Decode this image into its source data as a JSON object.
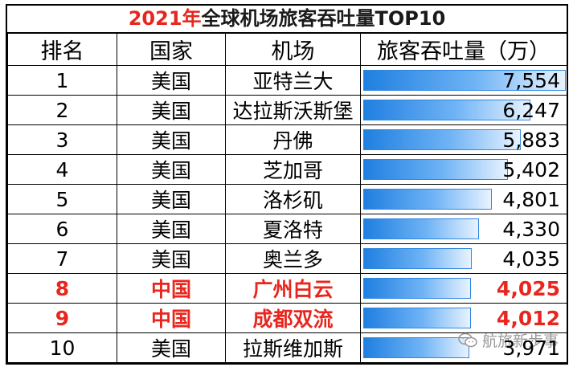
{
  "title": {
    "year": "2021年",
    "rest": "全球机场旅客吞吐量TOP10"
  },
  "headers": {
    "rank": "排名",
    "country": "国家",
    "airport": "机场",
    "volume": "旅客吞吐量（万）"
  },
  "rows": [
    {
      "rank": "1",
      "country": "美国",
      "airport": "亚特兰大",
      "value": "7,554",
      "num": 7554,
      "highlight": false
    },
    {
      "rank": "2",
      "country": "美国",
      "airport": "达拉斯沃斯堡",
      "value": "6,247",
      "num": 6247,
      "highlight": false
    },
    {
      "rank": "3",
      "country": "美国",
      "airport": "丹佛",
      "value": "5,883",
      "num": 5883,
      "highlight": false
    },
    {
      "rank": "4",
      "country": "美国",
      "airport": "芝加哥",
      "value": "5,402",
      "num": 5402,
      "highlight": false
    },
    {
      "rank": "5",
      "country": "美国",
      "airport": "洛杉矶",
      "value": "4,801",
      "num": 4801,
      "highlight": false
    },
    {
      "rank": "6",
      "country": "美国",
      "airport": "夏洛特",
      "value": "4,330",
      "num": 4330,
      "highlight": false
    },
    {
      "rank": "7",
      "country": "美国",
      "airport": "奥兰多",
      "value": "4,035",
      "num": 4035,
      "highlight": false
    },
    {
      "rank": "8",
      "country": "中国",
      "airport": "广州白云",
      "value": "4,025",
      "num": 4025,
      "highlight": true
    },
    {
      "rank": "9",
      "country": "中国",
      "airport": "成都双流",
      "value": "4,012",
      "num": 4012,
      "highlight": true
    },
    {
      "rank": "10",
      "country": "美国",
      "airport": "拉斯维加斯",
      "value": "3,971",
      "num": 3971,
      "highlight": false
    }
  ],
  "bar_max": 7554,
  "colors": {
    "highlight": "#e8261e",
    "bar": "#1f7fe0"
  },
  "watermark": {
    "icon": "wechat-icon",
    "text": "航旅新步事"
  }
}
